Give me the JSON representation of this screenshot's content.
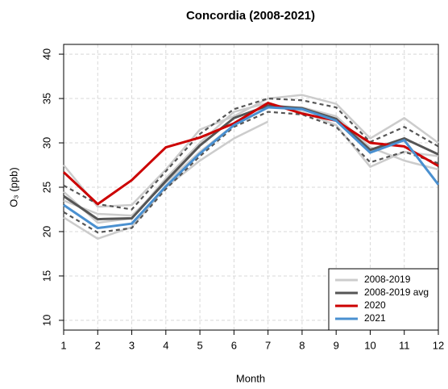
{
  "chart_data": {
    "type": "line",
    "title": "Concordia (2008-2021)",
    "x_label": "Month",
    "y_label": "O₃ (ppb)",
    "x": [
      1,
      2,
      3,
      4,
      5,
      6,
      7,
      8,
      9,
      10,
      11,
      12
    ],
    "xlim": [
      1,
      12
    ],
    "xticks": [
      1,
      2,
      3,
      4,
      5,
      6,
      7,
      8,
      9,
      10,
      11,
      12
    ],
    "ylim": [
      8.9,
      41.1
    ],
    "yticks": [
      10,
      15,
      20,
      25,
      30,
      35,
      40
    ],
    "grid": true,
    "legend": "bottom-right",
    "bands": {
      "color": "#555555",
      "upper": [
        25.2,
        23.1,
        22.5,
        26.8,
        31.0,
        33.8,
        35.0,
        34.8,
        34.0,
        30.1,
        31.8,
        29.6
      ],
      "lower": [
        22.2,
        19.9,
        20.4,
        24.8,
        28.5,
        31.8,
        33.5,
        33.2,
        31.8,
        27.8,
        29.0,
        27.7
      ]
    },
    "series": [
      {
        "name": "2008-2019",
        "color": "#cccccc",
        "lines": [
          [
            27.5,
            22.8,
            23.0,
            27.0,
            31.5,
            33.0,
            35.0,
            35.4,
            34.4,
            30.5,
            32.8,
            30.0
          ],
          [
            21.6,
            19.2,
            20.5,
            25.0,
            28.0,
            30.5,
            32.4,
            null,
            null,
            null,
            null,
            null
          ],
          [
            24.5,
            21.0,
            21.5,
            26.0,
            30.0,
            33.5,
            34.5,
            33.5,
            32.0,
            27.3,
            29.0,
            28.5
          ],
          [
            23.5,
            22.0,
            21.8,
            25.5,
            29.0,
            32.0,
            34.0,
            34.0,
            33.0,
            29.5,
            28.0,
            27.0
          ]
        ]
      },
      {
        "name": "2008-2019 avg",
        "color": "#555555",
        "values": [
          24.0,
          21.4,
          21.5,
          25.7,
          29.7,
          32.8,
          34.2,
          33.9,
          32.7,
          29.2,
          30.5,
          28.7
        ]
      },
      {
        "name": "2020",
        "color": "#cc0000",
        "values": [
          26.7,
          23.1,
          25.8,
          29.5,
          30.6,
          32.2,
          34.5,
          33.3,
          32.5,
          30.0,
          29.6,
          27.4
        ]
      },
      {
        "name": "2021",
        "color": "#4a90d0",
        "values": [
          23.0,
          20.4,
          20.9,
          25.1,
          28.8,
          32.0,
          34.0,
          33.8,
          32.5,
          28.9,
          30.3,
          25.3
        ]
      }
    ]
  }
}
